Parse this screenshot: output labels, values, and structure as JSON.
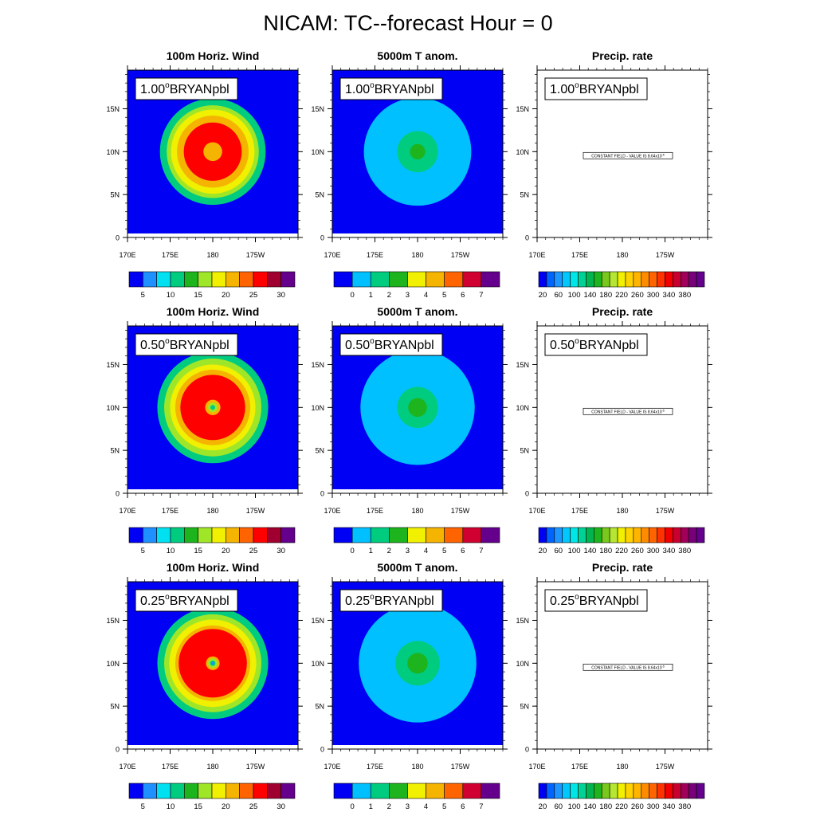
{
  "figure": {
    "title": "NICAM: TC--forecast Hour = 0"
  },
  "chart_data": {
    "type": "contour-map-grid",
    "map": {
      "lat_range": [
        0,
        19.5
      ],
      "lon_range": [
        170,
        190
      ],
      "lat_ticks": [
        {
          "value": 0,
          "label": "0"
        },
        {
          "value": 5,
          "label": "5N"
        },
        {
          "value": 10,
          "label": "10N"
        },
        {
          "value": 15,
          "label": "15N"
        }
      ],
      "lon_ticks": [
        {
          "value": 170,
          "label": "170E"
        },
        {
          "value": 175,
          "label": "175E"
        },
        {
          "value": 180,
          "label": "180"
        },
        {
          "value": 185,
          "label": "175W"
        }
      ],
      "center": {
        "lon": 180,
        "lat": 10
      }
    },
    "columns": [
      {
        "variable": "wind",
        "title": "100m Horiz. Wind",
        "colorbar": {
          "colors": [
            "#0000f5",
            "#1e90ff",
            "#00e0f0",
            "#00cc80",
            "#1eb41e",
            "#a0e628",
            "#f0f000",
            "#f5b400",
            "#ff6400",
            "#ff0000",
            "#a00030",
            "#64008c"
          ],
          "labels": [
            "5",
            "10",
            "15",
            "20",
            "25",
            "30"
          ]
        }
      },
      {
        "variable": "temp_anom",
        "title": "5000m T anom.",
        "colorbar": {
          "colors": [
            "#0000f5",
            "#00c0ff",
            "#00cc80",
            "#1eb41e",
            "#f0f000",
            "#f5b400",
            "#ff6400",
            "#d00030",
            "#64008c"
          ],
          "labels": [
            "0",
            "1",
            "2",
            "3",
            "4",
            "5",
            "6",
            "7"
          ]
        }
      },
      {
        "variable": "precip",
        "title": "Precip. rate",
        "colorbar": {
          "colors": [
            "#0000f5",
            "#0064ff",
            "#1e96ff",
            "#00c8ff",
            "#00e6e6",
            "#00d296",
            "#00b450",
            "#1eb41e",
            "#78c81e",
            "#b4e632",
            "#f0f000",
            "#ffd200",
            "#ffb400",
            "#ff8c00",
            "#ff6400",
            "#ff3200",
            "#f00000",
            "#c80032",
            "#a0005a",
            "#780078",
            "#64008c"
          ],
          "labels": [
            "20",
            "60",
            "100",
            "140",
            "180",
            "220",
            "260",
            "300",
            "340",
            "380"
          ]
        }
      }
    ],
    "rows": [
      {
        "resolution_label": "1.00",
        "suffix": "BRYANpbl",
        "wind_rings": [
          {
            "r_deg": 6.2,
            "value": 7.5
          },
          {
            "r_deg": 5.4,
            "value": 12.5
          },
          {
            "r_deg": 4.9,
            "value": 15
          },
          {
            "r_deg": 4.2,
            "value": 17.5
          },
          {
            "r_deg": 3.4,
            "value": 22.5
          },
          {
            "r_deg": 1.1,
            "value": 17.5
          }
        ],
        "temp_rings": [
          {
            "r_deg": 6.3,
            "value": 0.5
          },
          {
            "r_deg": 2.4,
            "value": 1.5
          },
          {
            "r_deg": 0.9,
            "value": 2.5
          }
        ],
        "precip_note": "CONSTANT FIELD - VALUE IS 8.64x10^-5"
      },
      {
        "resolution_label": "0.50",
        "suffix": "BRYANpbl",
        "wind_rings": [
          {
            "r_deg": 6.5,
            "value": 7.5
          },
          {
            "r_deg": 5.7,
            "value": 12.5
          },
          {
            "r_deg": 5.0,
            "value": 15
          },
          {
            "r_deg": 4.4,
            "value": 17.5
          },
          {
            "r_deg": 3.8,
            "value": 22.5
          },
          {
            "r_deg": 0.9,
            "value": 17.5
          },
          {
            "r_deg": 0.55,
            "value": 12.5
          },
          {
            "r_deg": 0.28,
            "value": 7.5
          }
        ],
        "temp_rings": [
          {
            "r_deg": 6.7,
            "value": 0.5
          },
          {
            "r_deg": 2.4,
            "value": 1.5
          },
          {
            "r_deg": 1.1,
            "value": 2.5
          }
        ],
        "precip_note": "CONSTANT FIELD - VALUE IS 8.64x10^-5"
      },
      {
        "resolution_label": "0.25",
        "suffix": "BRYANpbl",
        "wind_rings": [
          {
            "r_deg": 6.5,
            "value": 7.5
          },
          {
            "r_deg": 5.7,
            "value": 12.5
          },
          {
            "r_deg": 5.1,
            "value": 15
          },
          {
            "r_deg": 4.4,
            "value": 17.5
          },
          {
            "r_deg": 4.0,
            "value": 22.5
          },
          {
            "r_deg": 0.8,
            "value": 17.5
          },
          {
            "r_deg": 0.55,
            "value": 12.5
          },
          {
            "r_deg": 0.32,
            "value": 7.5
          },
          {
            "r_deg": 0.18,
            "value": 2.5
          }
        ],
        "temp_rings": [
          {
            "r_deg": 6.9,
            "value": 0.5
          },
          {
            "r_deg": 2.6,
            "value": 1.5
          },
          {
            "r_deg": 1.2,
            "value": 2.5
          }
        ],
        "precip_note": "CONSTANT FIELD - VALUE IS 8.64x10^-5"
      }
    ]
  }
}
